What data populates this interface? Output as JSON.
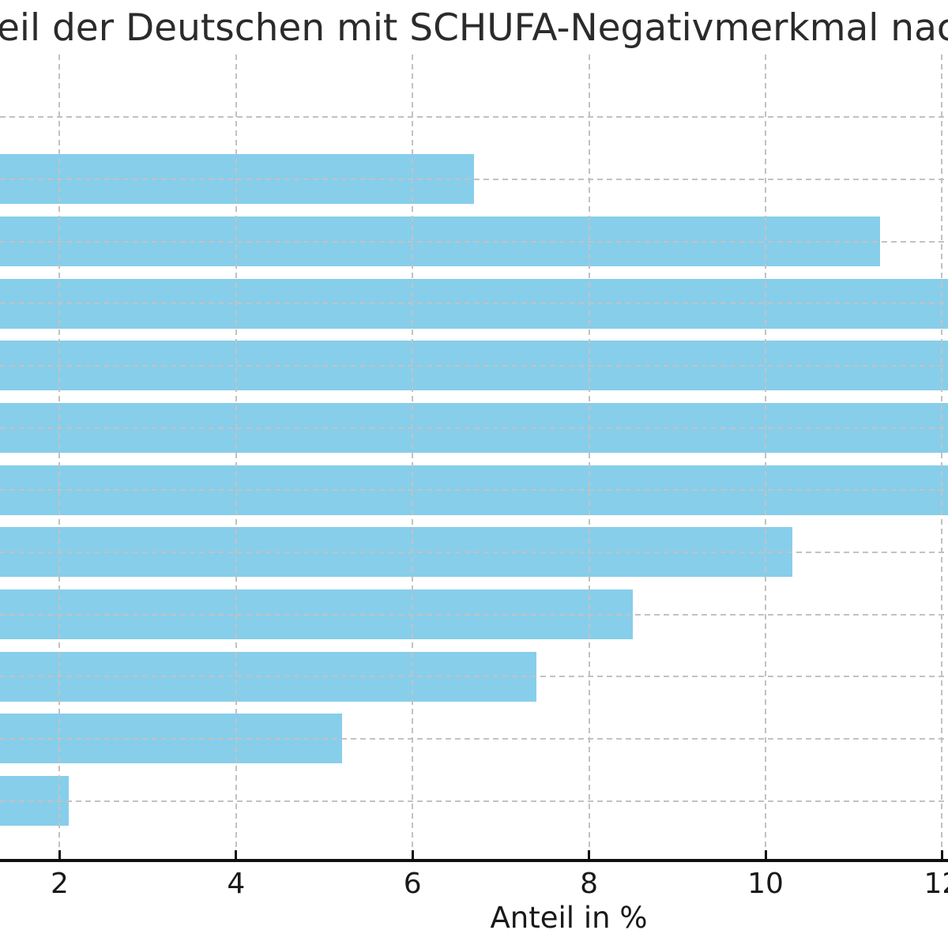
{
  "chart_data": {
    "type": "bar",
    "orientation": "horizontal",
    "title_visible": "eil der Deutschen mit SCHUFA-Negativmerkmal nach",
    "xlabel": "Anteil in %",
    "x_tick_labels": [
      "2",
      "4",
      "6",
      "8",
      "10",
      "12"
    ],
    "x_tick_values": [
      2,
      4,
      6,
      8,
      10,
      12
    ],
    "grid": true,
    "legend": false,
    "view_note": "chart is cropped on left and right edges; category axis labels are not visible; four bars run past the right image edge; topmost category row shows a gridline but no visible bar",
    "rows": [
      {
        "bar_visible": false,
        "value": null,
        "clipped_right": false
      },
      {
        "bar_visible": true,
        "value": 6.7,
        "clipped_right": false
      },
      {
        "bar_visible": true,
        "value": 11.3,
        "clipped_right": false
      },
      {
        "bar_visible": true,
        "value": null,
        "clipped_right": true
      },
      {
        "bar_visible": true,
        "value": null,
        "clipped_right": true
      },
      {
        "bar_visible": true,
        "value": null,
        "clipped_right": true
      },
      {
        "bar_visible": true,
        "value": null,
        "clipped_right": true
      },
      {
        "bar_visible": true,
        "value": 10.3,
        "clipped_right": false
      },
      {
        "bar_visible": true,
        "value": 8.5,
        "clipped_right": false
      },
      {
        "bar_visible": true,
        "value": 7.4,
        "clipped_right": false
      },
      {
        "bar_visible": true,
        "value": 5.2,
        "clipped_right": false
      },
      {
        "bar_visible": true,
        "value": 2.1,
        "clipped_right": false
      }
    ],
    "colors": {
      "bar": "#87CEEB",
      "grid": "#c2c2c2",
      "axis": "#111111",
      "title_text": "#2b2b2b",
      "tick_text": "#191919",
      "background": "#ffffff"
    }
  }
}
